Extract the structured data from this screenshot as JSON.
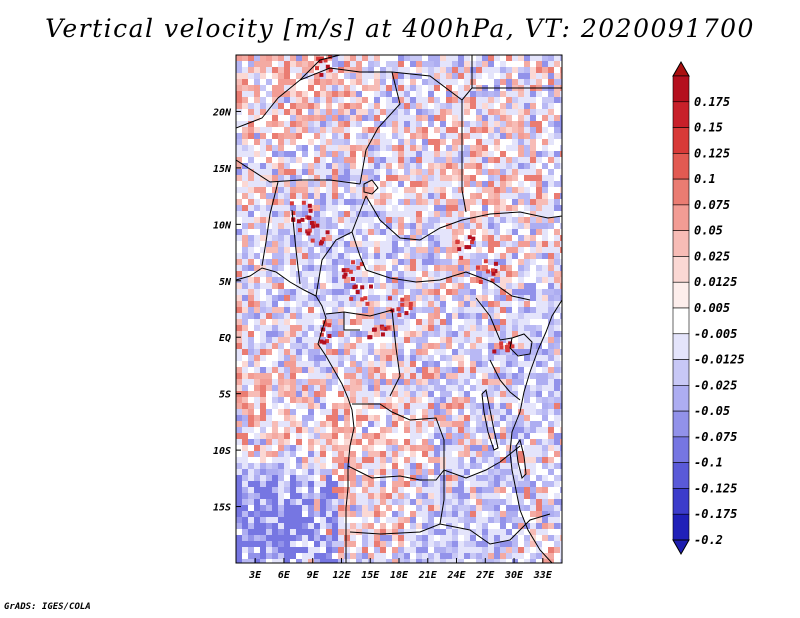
{
  "title": "Vertical velocity [m/s] at 400hPa, VT: 2020091700",
  "footer": "GrADS: IGES/COLA",
  "map": {
    "lon_range": [
      1,
      35
    ],
    "lat_range": [
      -20,
      25
    ],
    "lat_ticks": [
      {
        "value": 20,
        "label": "20N"
      },
      {
        "value": 15,
        "label": "15N"
      },
      {
        "value": 10,
        "label": "10N"
      },
      {
        "value": 5,
        "label": "5N"
      },
      {
        "value": 0,
        "label": "EQ"
      },
      {
        "value": -5,
        "label": "5S"
      },
      {
        "value": -10,
        "label": "10S"
      },
      {
        "value": -15,
        "label": "15S"
      }
    ],
    "lon_ticks": [
      {
        "value": 3,
        "label": "3E"
      },
      {
        "value": 6,
        "label": "6E"
      },
      {
        "value": 9,
        "label": "9E"
      },
      {
        "value": 12,
        "label": "12E"
      },
      {
        "value": 15,
        "label": "15E"
      },
      {
        "value": 18,
        "label": "18E"
      },
      {
        "value": 21,
        "label": "21E"
      },
      {
        "value": 24,
        "label": "24E"
      },
      {
        "value": 27,
        "label": "27E"
      },
      {
        "value": 30,
        "label": "30E"
      },
      {
        "value": 33,
        "label": "33E"
      }
    ]
  },
  "colorbar": {
    "levels": [
      {
        "label": "0.175",
        "color": "#b40f1e"
      },
      {
        "label": "0.15",
        "color": "#c8202a"
      },
      {
        "label": "0.125",
        "color": "#d83a38"
      },
      {
        "label": "0.1",
        "color": "#e25a52"
      },
      {
        "label": "0.075",
        "color": "#ea7c72"
      },
      {
        "label": "0.05",
        "color": "#f29c94"
      },
      {
        "label": "0.025",
        "color": "#f7bcb6"
      },
      {
        "label": "0.0125",
        "color": "#fbd8d4"
      },
      {
        "label": "0.005",
        "color": "#fdeeec"
      },
      {
        "label": "-0.005",
        "color": "#ffffff"
      },
      {
        "label": "-0.0125",
        "color": "#e4e4fb"
      },
      {
        "label": "-0.025",
        "color": "#c8c8f6"
      },
      {
        "label": "-0.05",
        "color": "#adadf1"
      },
      {
        "label": "-0.075",
        "color": "#9292ea"
      },
      {
        "label": "-0.1",
        "color": "#7676e2"
      },
      {
        "label": "-0.125",
        "color": "#5a5ad8"
      },
      {
        "label": "-0.175",
        "color": "#3c3ccb"
      },
      {
        "label": "-0.2",
        "color": "#2020b8"
      }
    ],
    "top_color": "#aa1010",
    "bottom_color": "#1e1eb0"
  }
}
